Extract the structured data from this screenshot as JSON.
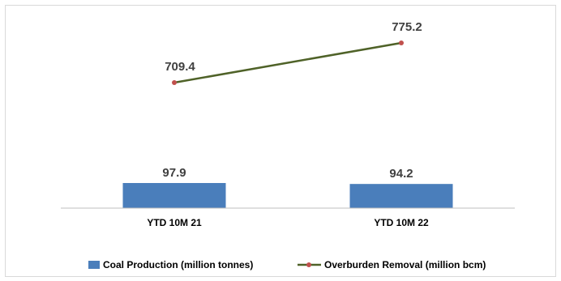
{
  "chart_data": {
    "type": "bar+line",
    "categories": [
      "YTD 10M 21",
      "YTD 10M 22"
    ],
    "series": [
      {
        "name": "Coal Production (million tonnes)",
        "type": "bar",
        "values": [
          97.9,
          94.2
        ],
        "value_labels": [
          "97.9",
          "94.2"
        ],
        "color": "#4a7ebb"
      },
      {
        "name": "Overburden Removal (million bcm)",
        "type": "line",
        "values": [
          709.4,
          775.2
        ],
        "value_labels": [
          "709.4",
          "775.2"
        ],
        "color": "#4f6228",
        "marker_color": "#c0504d"
      }
    ],
    "title": "",
    "xlabel": "",
    "ylabel": "",
    "grid": false,
    "legend": "bottom"
  }
}
